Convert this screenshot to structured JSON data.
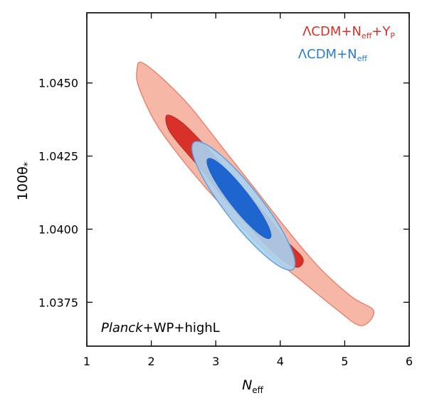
{
  "chart_data": {
    "type": "contour",
    "xlabel": "N",
    "xlabel_sub": "eff",
    "ylabel": "100θ",
    "ylabel_sub": "*",
    "xlim": [
      1,
      6
    ],
    "ylim": [
      1.036,
      1.0474
    ],
    "xticks": [
      1,
      2,
      3,
      4,
      5,
      6
    ],
    "xtick_labels": [
      "1",
      "2",
      "3",
      "4",
      "5",
      "6"
    ],
    "yticks": [
      1.0375,
      1.04,
      1.0425,
      1.045
    ],
    "ytick_labels": [
      "1.0375",
      "1.0400",
      "1.0425",
      "1.0450"
    ],
    "grid": false,
    "legend_position": "top-right",
    "annotation": {
      "italic": "Planck",
      "rest": "+WP+highL"
    },
    "series": [
      {
        "name_main": "ΛCDM+N",
        "name_sub1": "eff",
        "name_mid": "+Y",
        "name_sub2": "P",
        "color": "#d7312a",
        "contours": [
          {
            "level": "95%",
            "fill": "#f7b7a6",
            "stroke": "#e8745f",
            "polygon": [
              [
                1.85,
                1.0457
              ],
              [
                2.15,
                1.0452
              ],
              [
                2.6,
                1.0442
              ],
              [
                3.1,
                1.0428
              ],
              [
                3.6,
                1.0414
              ],
              [
                4.1,
                1.04
              ],
              [
                4.6,
                1.0387
              ],
              [
                5.1,
                1.0377
              ],
              [
                5.45,
                1.0372
              ],
              [
                5.25,
                1.0367
              ],
              [
                4.85,
                1.0373
              ],
              [
                4.35,
                1.0382
              ],
              [
                3.85,
                1.0391
              ],
              [
                3.35,
                1.0402
              ],
              [
                2.85,
                1.0414
              ],
              [
                2.4,
                1.0426
              ],
              [
                2.05,
                1.0437
              ],
              [
                1.8,
                1.0449
              ],
              [
                1.78,
                1.0455
              ]
            ]
          },
          {
            "level": "68%",
            "fill": "#d7312a",
            "stroke": "#c22a22",
            "polygon": [
              [
                2.25,
                1.0439
              ],
              [
                2.5,
                1.0436
              ],
              [
                2.9,
                1.0427
              ],
              [
                3.3,
                1.0417
              ],
              [
                3.7,
                1.0407
              ],
              [
                4.1,
                1.0396
              ],
              [
                4.35,
                1.039
              ],
              [
                4.25,
                1.0387
              ],
              [
                3.95,
                1.0391
              ],
              [
                3.55,
                1.04
              ],
              [
                3.15,
                1.041
              ],
              [
                2.75,
                1.0421
              ],
              [
                2.4,
                1.043
              ],
              [
                2.25,
                1.0435
              ]
            ]
          }
        ]
      },
      {
        "name_main": "ΛCDM+N",
        "name_sub1": "eff",
        "name_mid": "",
        "name_sub2": "",
        "color": "#2a7dd1",
        "contours": [
          {
            "level": "95%",
            "fill": "#a9d3ef",
            "fill_opacity": 0.9,
            "stroke": "#5b9be0",
            "ellipse": {
              "cx": 3.43,
              "cy": 1.0408,
              "a": 1.25,
              "b": 0.28,
              "angle_deg": 52
            }
          },
          {
            "level": "68%",
            "fill": "#1f65cf",
            "stroke": "#1f65cf",
            "ellipse": {
              "cx": 3.36,
              "cy": 1.04105,
              "a": 0.78,
              "b": 0.15,
              "angle_deg": 52
            }
          }
        ]
      }
    ]
  }
}
